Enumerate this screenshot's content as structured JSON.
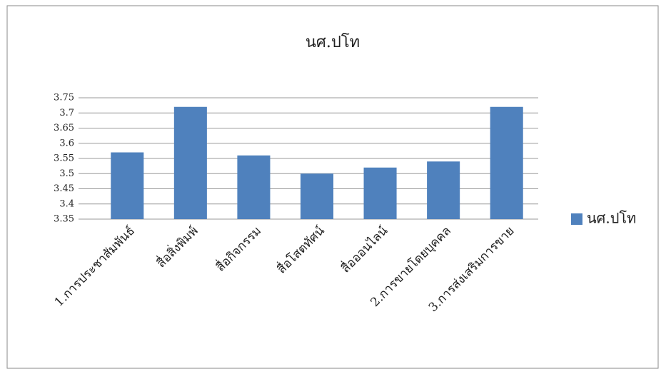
{
  "chart_data": {
    "type": "bar",
    "title": "นศ.ปโท",
    "categories": [
      "1.การประชาสัมพันธ์",
      "สื่อสิ่งพิมพ์",
      "สื่อกิจกรรม",
      "สื่อโสตทัศน์",
      "สื่อออนไลน์",
      "2.การขายโดยบุคคล",
      "3.การส่งเสริมการขาย"
    ],
    "series": [
      {
        "name": "นศ.ปโท",
        "color": "#4f81bd",
        "values": [
          3.57,
          3.72,
          3.56,
          3.5,
          3.52,
          3.54,
          3.72
        ]
      }
    ],
    "ylim": [
      3.35,
      3.75
    ],
    "yticks": [
      3.35,
      3.4,
      3.45,
      3.5,
      3.55,
      3.6,
      3.65,
      3.7,
      3.75
    ],
    "grid": true,
    "legend": "right"
  }
}
